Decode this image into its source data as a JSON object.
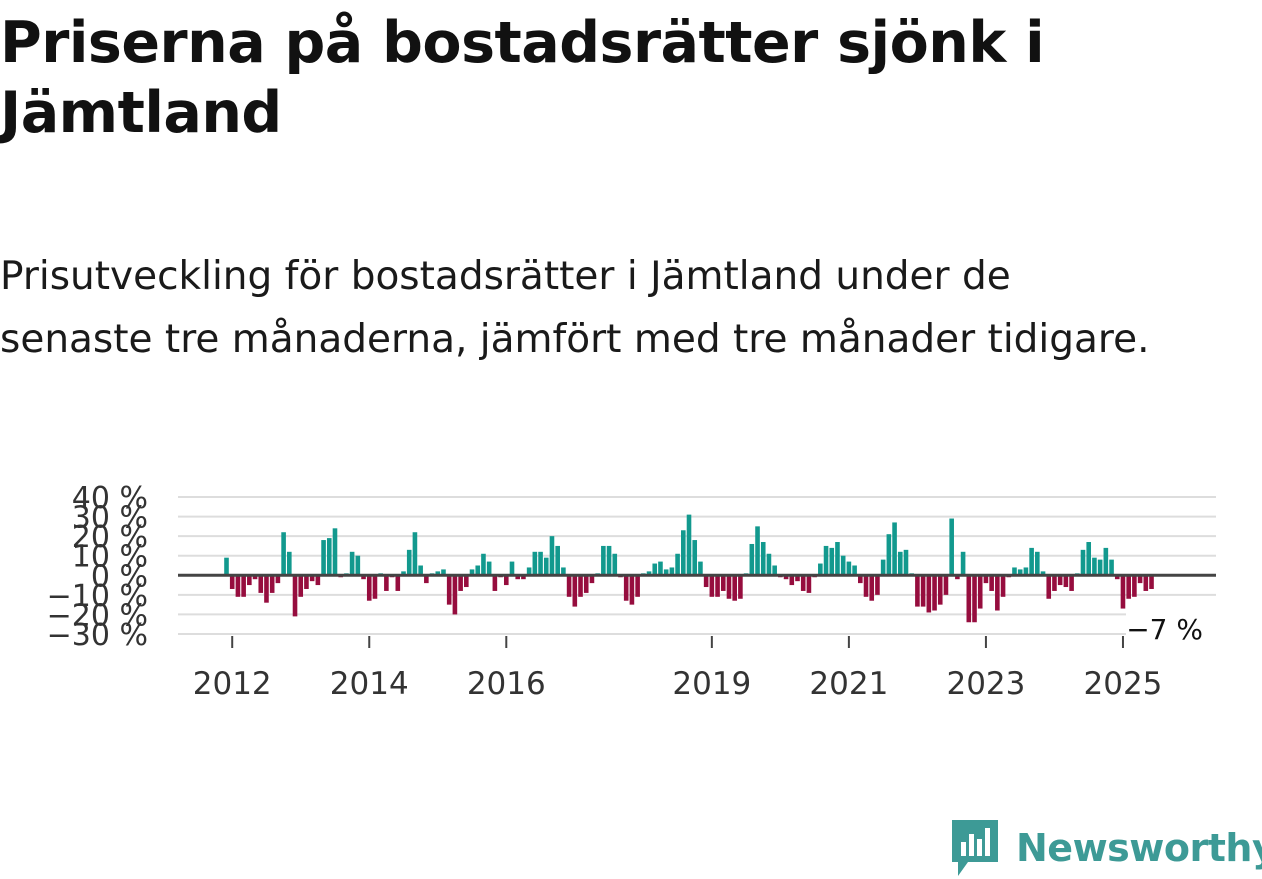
{
  "title": "Priserna på bostadsrätter sjönk i Jämtland",
  "subtitle": "Prisutveckling för bostadsrätter i Jämtland under de senaste tre månaderna, jämfört med tre månader tidigare.",
  "brand": {
    "name": "Newsworthy",
    "color": "#3d9a96"
  },
  "chart_data": {
    "type": "bar",
    "unit": "%",
    "start": "2011-12",
    "colors": {
      "positive": "#12998e",
      "negative": "#960d3e",
      "grid": "#dddddd",
      "zero": "#444444"
    },
    "ylim": [
      -30,
      40
    ],
    "y_ticks": [
      {
        "value": 40,
        "label": "40 %"
      },
      {
        "value": 30,
        "label": "30 %"
      },
      {
        "value": 20,
        "label": "20 %"
      },
      {
        "value": 10,
        "label": "10 %"
      },
      {
        "value": 0,
        "label": "0 %"
      },
      {
        "value": -10,
        "label": "−10 %"
      },
      {
        "value": -20,
        "label": "−20 %"
      },
      {
        "value": -30,
        "label": "−30 %"
      }
    ],
    "x_ticks": [
      {
        "label": "2012",
        "index": 1
      },
      {
        "label": "2014",
        "index": 25
      },
      {
        "label": "2016",
        "index": 49
      },
      {
        "label": "2019",
        "index": 85
      },
      {
        "label": "2021",
        "index": 109
      },
      {
        "label": "2023",
        "index": 133
      },
      {
        "label": "2025",
        "index": 157
      }
    ],
    "end_label": "−7 %",
    "values": [
      9,
      -7,
      -11,
      -11,
      -5,
      -2,
      -9,
      -14,
      -9,
      -4,
      22,
      12,
      -21,
      -11,
      -7,
      -3,
      -5,
      18,
      19,
      24,
      -1,
      1,
      12,
      10,
      -2,
      -13,
      -12,
      1,
      -8,
      -1,
      -8,
      2,
      13,
      22,
      5,
      -4,
      1,
      2,
      3,
      -15,
      -20,
      -8,
      -6,
      3,
      5,
      11,
      7,
      -8,
      -1,
      -5,
      7,
      -2,
      -2,
      4,
      12,
      12,
      9,
      20,
      15,
      4,
      -11,
      -16,
      -11,
      -9,
      -4,
      1,
      15,
      15,
      11,
      -1,
      -13,
      -15,
      -11,
      1,
      2,
      6,
      7,
      3,
      4,
      11,
      23,
      31,
      18,
      7,
      -6,
      -11,
      -11,
      -8,
      -12,
      -13,
      -12,
      1,
      16,
      25,
      17,
      11,
      5,
      -1,
      -2,
      -5,
      -3,
      -8,
      -9,
      -1,
      6,
      15,
      14,
      17,
      10,
      7,
      5,
      -4,
      -11,
      -13,
      -10,
      8,
      21,
      27,
      12,
      13,
      1,
      -16,
      -16,
      -19,
      -18,
      -15,
      -10,
      29,
      -2,
      12,
      -24,
      -24,
      -17,
      -4,
      -8,
      -18,
      -11,
      -1,
      4,
      3,
      4,
      14,
      12,
      2,
      -12,
      -8,
      -5,
      -6,
      -8,
      1,
      13,
      17,
      9,
      8,
      14,
      8,
      -2,
      -17,
      -12,
      -11,
      -4,
      -8,
      -7
    ]
  }
}
